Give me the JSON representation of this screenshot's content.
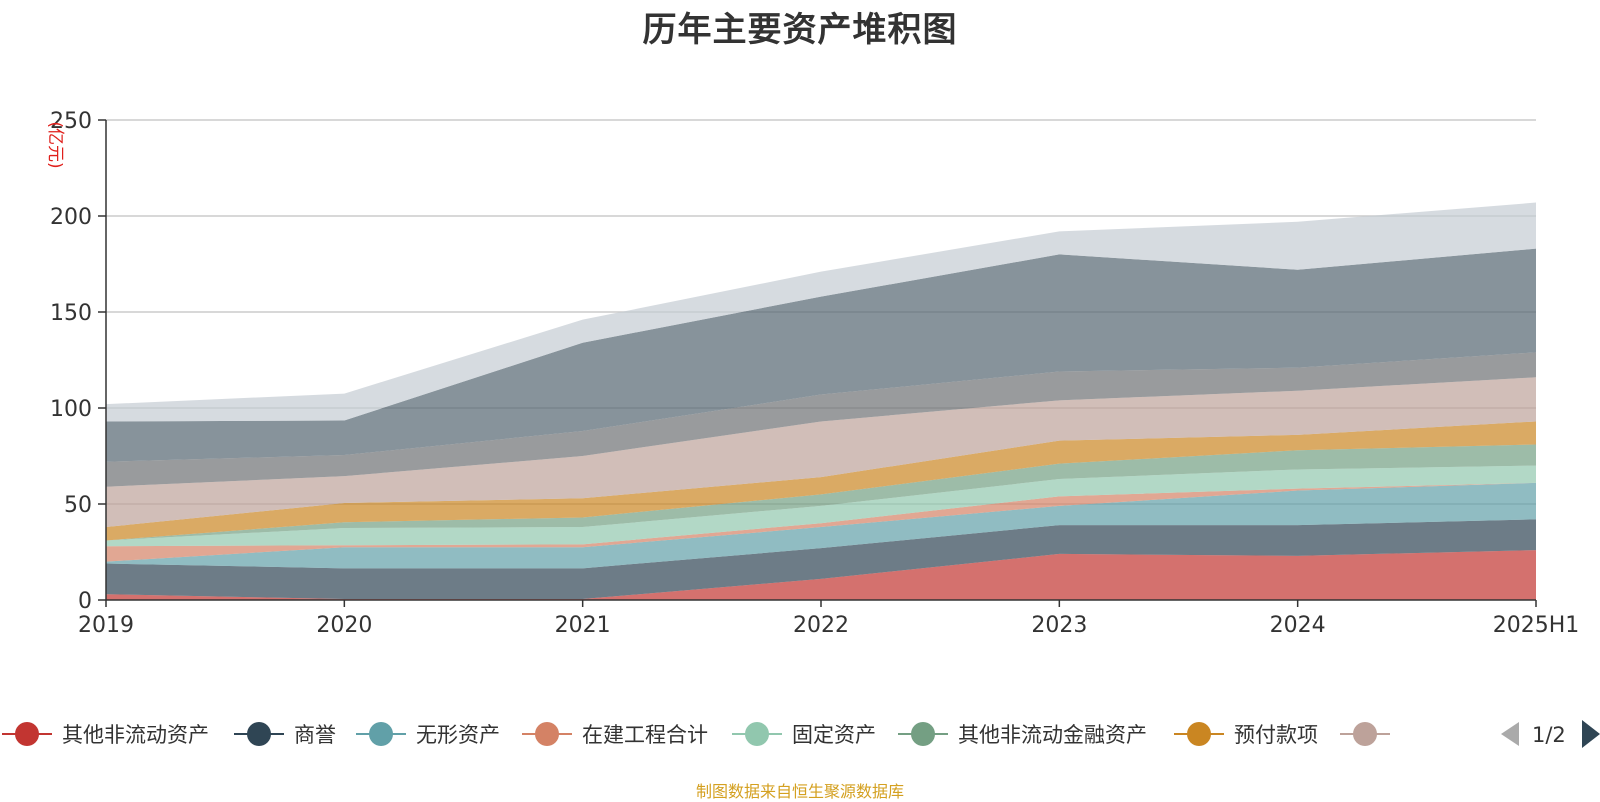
{
  "chart_data": {
    "type": "area",
    "stacked": true,
    "title": "历年主要资产堆积图",
    "ylabel": "(亿元)",
    "ylim": [
      0,
      250
    ],
    "yticks": [
      0,
      50,
      100,
      150,
      200,
      250
    ],
    "categories": [
      "2019",
      "2020",
      "2021",
      "2022",
      "2023",
      "2024",
      "2025H1"
    ],
    "grid": true,
    "legend_position": "bottom",
    "legend_page": "1/2",
    "series": [
      {
        "name": "其他非流动资产",
        "color": "#c23531",
        "values": [
          3,
          0.5,
          0.5,
          11,
          24,
          23,
          26
        ]
      },
      {
        "name": "商誉",
        "color": "#2f4554",
        "values": [
          16,
          16,
          16,
          16,
          15,
          16,
          16
        ]
      },
      {
        "name": "无形资产",
        "color": "#61a0a8",
        "values": [
          1,
          11,
          11,
          11,
          10,
          18,
          19
        ]
      },
      {
        "name": "在建工程合计",
        "color": "#d48265",
        "values": [
          8,
          1,
          1.5,
          2,
          5,
          1,
          0
        ]
      },
      {
        "name": "固定资产",
        "color": "#91c7ae",
        "values": [
          3,
          9,
          9,
          9,
          9,
          10,
          9
        ]
      },
      {
        "name": "其他非流动金融资产",
        "color": "#749f83",
        "values": [
          0,
          3,
          5,
          6,
          8,
          10,
          11
        ]
      },
      {
        "name": "预付款项",
        "color": "#ca8622",
        "values": [
          7,
          10,
          10,
          9,
          12,
          8,
          12
        ]
      },
      {
        "name": "",
        "color": "#bda29a",
        "values": [
          21,
          14,
          22,
          29,
          21,
          23,
          23
        ]
      },
      {
        "name": "",
        "color": "#6e7074",
        "values": [
          13,
          11,
          13,
          14,
          15,
          12,
          13
        ]
      },
      {
        "name": "",
        "color": "#546570",
        "values": [
          21,
          18,
          46,
          51,
          61,
          51,
          54
        ]
      },
      {
        "name": "",
        "color": "#c4ccd3",
        "values": [
          9,
          14,
          12,
          13,
          12,
          25,
          24
        ]
      }
    ]
  },
  "source_note": "制图数据来自恒生聚源数据库"
}
